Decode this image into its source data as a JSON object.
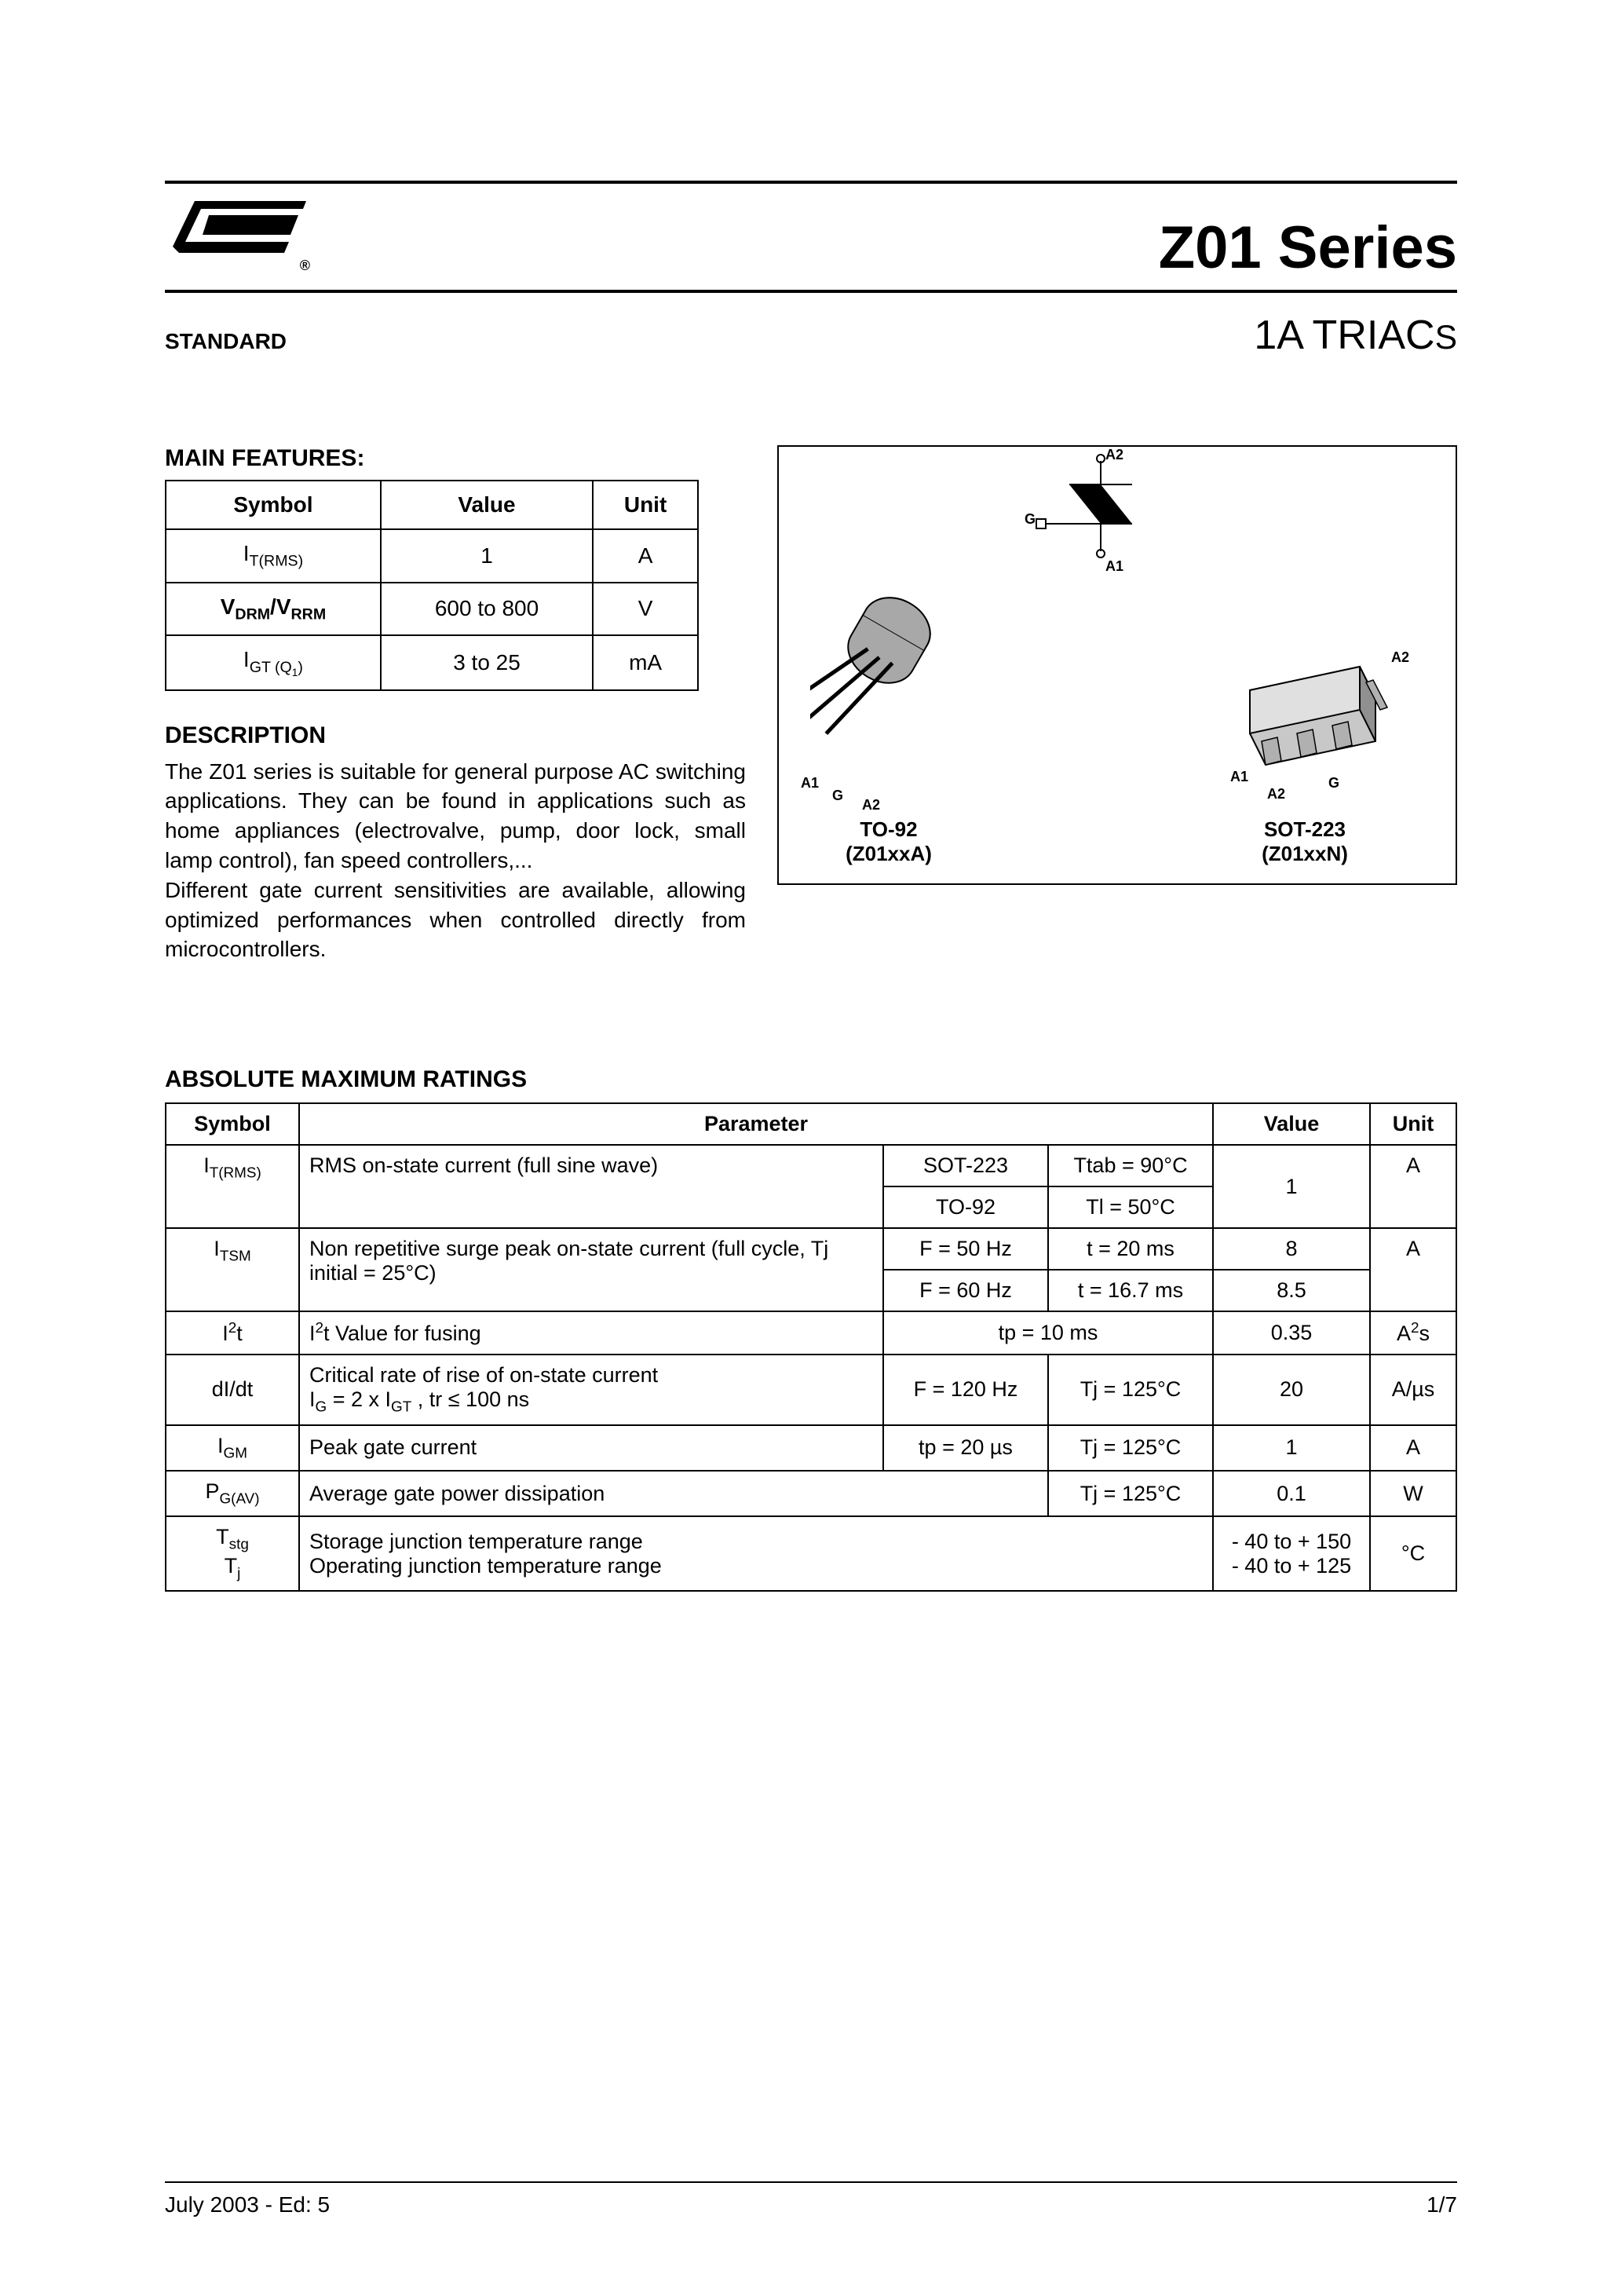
{
  "header": {
    "title": "Z01 Series",
    "standard": "STANDARD",
    "subtitle_main": "1A TRIAC",
    "subtitle_suffix": "S"
  },
  "main_features": {
    "heading": "MAIN FEATURES:",
    "columns": [
      "Symbol",
      "Value",
      "Unit"
    ],
    "rows": [
      {
        "symbol_html": "I<span class='sub'>T(RMS)</span>",
        "value": "1",
        "unit": "A"
      },
      {
        "symbol_html": "V<span class='sub'>DRM</span>/V<span class='sub'>RRM</span>",
        "value": "600 to 800",
        "unit": "V"
      },
      {
        "symbol_html": "I<span class='sub'>GT (Q<span class='sub'>1</span>)</span>",
        "value": "3 to 25",
        "unit": "mA"
      }
    ]
  },
  "description": {
    "heading": "DESCRIPTION",
    "text": "The Z01 series is suitable for general purpose AC switching applications. They can be found in applications such as home appliances (electrovalve, pump, door lock, small lamp control), fan speed controllers,...\nDifferent gate current sensitivities are available, allowing optimized performances when controlled directly from microcontrollers."
  },
  "packages": {
    "symbol_pins": {
      "top": "A2",
      "bottom": "A1",
      "left": "G"
    },
    "to92": {
      "name": "TO-92",
      "part": "(Z01xxA)",
      "pins": [
        "A1",
        "G",
        "A2"
      ]
    },
    "sot223": {
      "name": "SOT-223",
      "part": "(Z01xxN)",
      "pins": [
        "A1",
        "A2",
        "G",
        "A2"
      ]
    }
  },
  "amr": {
    "heading": "ABSOLUTE MAXIMUM RATINGS",
    "columns": [
      "Symbol",
      "Parameter",
      "Value",
      "Unit"
    ],
    "rows": {
      "itrms": {
        "symbol_html": "I<span class='sub'>T(RMS)</span>",
        "param": "RMS on-state current (full sine wave)",
        "cond1a": "SOT-223",
        "cond1b": "Ttab = 90°C",
        "cond2a": "TO-92",
        "cond2b": "Tl = 50°C",
        "value": "1",
        "unit": "A"
      },
      "itsm": {
        "symbol_html": "I<span class='sub'>TSM</span>",
        "param": "Non repetitive surge peak on-state current  (full cycle, Tj initial = 25°C)",
        "cond1a": "F = 50 Hz",
        "cond1b": "t = 20 ms",
        "value1": "8",
        "cond2a": "F = 60 Hz",
        "cond2b": "t = 16.7 ms",
        "value2": "8.5",
        "unit": "A"
      },
      "i2t": {
        "symbol_html": "I<span class='sup'>2</span>t",
        "param_html": "I<span class='sup'>2</span>t Value for fusing",
        "cond": "tp = 10 ms",
        "value": "0.35",
        "unit_html": "A<span class='sup'>2</span>s"
      },
      "didt": {
        "symbol": "dI/dt",
        "param_html": "Critical rate of rise of on-state current<br>I<span class='sub'>G</span> = 2 x I<span class='sub'>GT</span> , tr ≤ 100 ns",
        "cond1": "F = 120 Hz",
        "cond2": "Tj = 125°C",
        "value": "20",
        "unit": "A/µs"
      },
      "igm": {
        "symbol_html": "I<span class='sub'>GM</span>",
        "param": "Peak gate current",
        "cond1": "tp = 20 µs",
        "cond2": "Tj = 125°C",
        "value": "1",
        "unit": "A"
      },
      "pgav": {
        "symbol_html": "P<span class='sub'>G(AV)</span>",
        "param": "Average gate power dissipation",
        "cond2": "Tj = 125°C",
        "value": "0.1",
        "unit": "W"
      },
      "temp": {
        "symbol_html": "T<span class='sub'>stg</span><br>T<span class='sub'>j</span>",
        "param": "Storage junction temperature range\nOperating junction temperature range",
        "value": "- 40 to + 150\n- 40 to + 125",
        "unit": "°C"
      }
    }
  },
  "footer": {
    "left": "July 2003 - Ed: 5",
    "right": "1/7"
  },
  "colors": {
    "text": "#000000",
    "background": "#ffffff",
    "border": "#000000"
  }
}
